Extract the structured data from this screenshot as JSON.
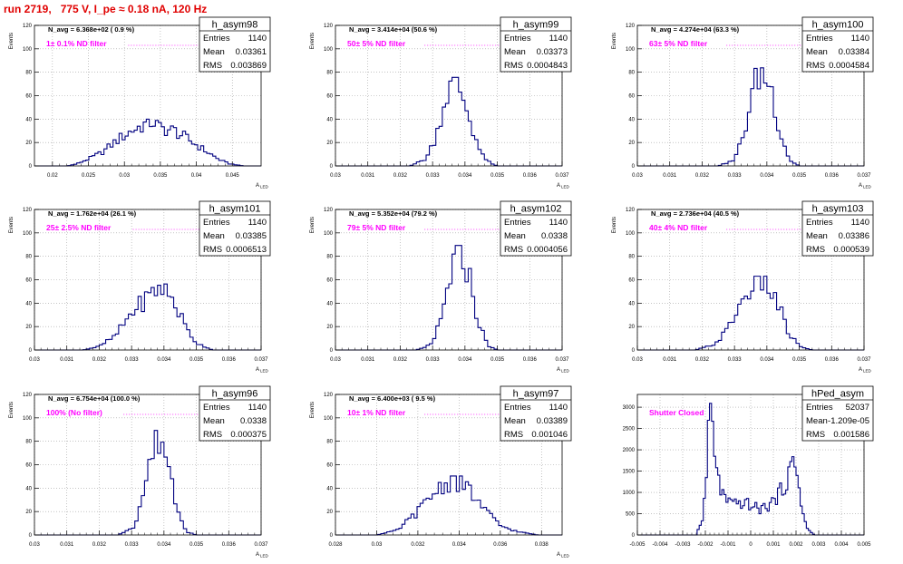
{
  "title": "run 2719,   775 V, I_pe ≈ 0.18 nA, 120 Hz",
  "colors": {
    "title": "#e00000",
    "histogram": "#000080",
    "annotation": "#ff00ff",
    "grid": "#a0a0a0",
    "frame": "#000000"
  },
  "stat_labels": {
    "entries": "Entries",
    "mean": "Mean",
    "rms": "RMS"
  },
  "chart_data": [
    {
      "type": "histogram",
      "name": "h_asym98",
      "xlabel": "A_LED",
      "ylabel": "Events",
      "xlim": [
        0.0175,
        0.049
      ],
      "ylim": [
        0,
        120
      ],
      "xticks": [
        0.02,
        0.025,
        0.03,
        0.035,
        0.04,
        0.045
      ],
      "xtick_labels": [
        "0.02",
        "0.025",
        "0.03",
        "0.035",
        "0.04",
        "0.045"
      ],
      "yticks": [
        0,
        20,
        40,
        60,
        80,
        100,
        120
      ],
      "grid": true,
      "navg": "N_avg = 6.368e+02 ( 0.9 %)",
      "filter": "1± 0.1% ND filter",
      "stats": {
        "entries": "1140",
        "mean": "0.03361",
        "rms": "0.003869"
      },
      "profile": [
        [
          0.0222,
          0
        ],
        [
          0.0235,
          2
        ],
        [
          0.025,
          6
        ],
        [
          0.027,
          12
        ],
        [
          0.029,
          22
        ],
        [
          0.031,
          30
        ],
        [
          0.033,
          36
        ],
        [
          0.034,
          38
        ],
        [
          0.035,
          32
        ],
        [
          0.037,
          30
        ],
        [
          0.039,
          22
        ],
        [
          0.041,
          14
        ],
        [
          0.043,
          6
        ],
        [
          0.0445,
          2
        ],
        [
          0.0465,
          0
        ]
      ],
      "bins": 75
    },
    {
      "type": "histogram",
      "name": "h_asym99",
      "xlabel": "A_LED",
      "ylabel": "Events",
      "xlim": [
        0.03,
        0.037
      ],
      "ylim": [
        0,
        120
      ],
      "xticks": [
        0.03,
        0.031,
        0.032,
        0.033,
        0.034,
        0.035,
        0.036,
        0.037
      ],
      "xtick_labels": [
        "0.03",
        "0.031",
        "0.032",
        "0.033",
        "0.034",
        "0.035",
        "0.036",
        "0.037"
      ],
      "yticks": [
        0,
        20,
        40,
        60,
        80,
        100,
        120
      ],
      "grid": true,
      "navg": "N_avg = 3.414e+04 (50.6 %)",
      "filter": "50± 5% ND filter",
      "stats": {
        "entries": "1140",
        "mean": "0.03373",
        "rms": "0.0004843"
      },
      "profile": [
        [
          0.0323,
          0
        ],
        [
          0.0328,
          6
        ],
        [
          0.0331,
          25
        ],
        [
          0.0334,
          58
        ],
        [
          0.03365,
          72
        ],
        [
          0.0339,
          62
        ],
        [
          0.0342,
          35
        ],
        [
          0.0345,
          10
        ],
        [
          0.0348,
          2
        ],
        [
          0.035,
          0
        ]
      ],
      "bins": 70
    },
    {
      "type": "histogram",
      "name": "h_asym100",
      "xlabel": "A_LED",
      "ylabel": "Events",
      "xlim": [
        0.03,
        0.037
      ],
      "ylim": [
        0,
        120
      ],
      "xticks": [
        0.03,
        0.031,
        0.032,
        0.033,
        0.034,
        0.035,
        0.036,
        0.037
      ],
      "xtick_labels": [
        "0.03",
        "0.031",
        "0.032",
        "0.033",
        "0.034",
        "0.035",
        "0.036",
        "0.037"
      ],
      "yticks": [
        0,
        20,
        40,
        60,
        80,
        100,
        120
      ],
      "grid": true,
      "navg": "N_avg = 4.274e+04 (63.3 %)",
      "filter": "63± 5% ND filter",
      "stats": {
        "entries": "1140",
        "mean": "0.03384",
        "rms": "0.0004584"
      },
      "profile": [
        [
          0.0325,
          0
        ],
        [
          0.033,
          5
        ],
        [
          0.0333,
          28
        ],
        [
          0.0336,
          68
        ],
        [
          0.0338,
          80
        ],
        [
          0.0341,
          70
        ],
        [
          0.0344,
          30
        ],
        [
          0.0347,
          5
        ],
        [
          0.035,
          0
        ]
      ],
      "bins": 70
    },
    {
      "type": "histogram",
      "name": "h_asym101",
      "xlabel": "A_LED",
      "ylabel": "Events",
      "xlim": [
        0.03,
        0.037
      ],
      "ylim": [
        0,
        120
      ],
      "xticks": [
        0.03,
        0.031,
        0.032,
        0.033,
        0.034,
        0.035,
        0.036,
        0.037
      ],
      "xtick_labels": [
        "0.03",
        "0.031",
        "0.032",
        "0.033",
        "0.034",
        "0.035",
        "0.036",
        "0.037"
      ],
      "yticks": [
        0,
        20,
        40,
        60,
        80,
        100,
        120
      ],
      "grid": true,
      "navg": "N_avg = 1.762e+04 (26.1 %)",
      "filter": "25± 2.5% ND filter",
      "stats": {
        "entries": "1140",
        "mean": "0.03385",
        "rms": "0.0006513"
      },
      "profile": [
        [
          0.0315,
          0
        ],
        [
          0.032,
          3
        ],
        [
          0.0325,
          12
        ],
        [
          0.033,
          32
        ],
        [
          0.0335,
          45
        ],
        [
          0.0339,
          55
        ],
        [
          0.0343,
          42
        ],
        [
          0.0347,
          18
        ],
        [
          0.035,
          6
        ],
        [
          0.0355,
          0
        ]
      ],
      "bins": 70
    },
    {
      "type": "histogram",
      "name": "h_asym102",
      "xlabel": "A_LED",
      "ylabel": "Events",
      "xlim": [
        0.03,
        0.037
      ],
      "ylim": [
        0,
        120
      ],
      "xticks": [
        0.03,
        0.031,
        0.032,
        0.033,
        0.034,
        0.035,
        0.036,
        0.037
      ],
      "xtick_labels": [
        "0.03",
        "0.031",
        "0.032",
        "0.033",
        "0.034",
        "0.035",
        "0.036",
        "0.037"
      ],
      "yticks": [
        0,
        20,
        40,
        60,
        80,
        100,
        120
      ],
      "grid": true,
      "navg": "N_avg = 5.352e+04 (79.2 %)",
      "filter": "79± 5% ND filter",
      "stats": {
        "entries": "1140",
        "mean": "0.0338",
        "rms": "0.0004056"
      },
      "profile": [
        [
          0.0325,
          0
        ],
        [
          0.033,
          5
        ],
        [
          0.0333,
          30
        ],
        [
          0.0336,
          70
        ],
        [
          0.0338,
          85
        ],
        [
          0.0341,
          68
        ],
        [
          0.0344,
          25
        ],
        [
          0.0347,
          4
        ],
        [
          0.035,
          0
        ]
      ],
      "bins": 70
    },
    {
      "type": "histogram",
      "name": "h_asym103",
      "xlabel": "A_LED",
      "ylabel": "Events",
      "xlim": [
        0.03,
        0.037
      ],
      "ylim": [
        0,
        120
      ],
      "xticks": [
        0.03,
        0.031,
        0.032,
        0.033,
        0.034,
        0.035,
        0.036,
        0.037
      ],
      "xtick_labels": [
        "0.03",
        "0.031",
        "0.032",
        "0.033",
        "0.034",
        "0.035",
        "0.036",
        "0.037"
      ],
      "yticks": [
        0,
        20,
        40,
        60,
        80,
        100,
        120
      ],
      "grid": true,
      "navg": "N_avg = 2.736e+04 (40.5 %)",
      "filter": "40± 4% ND filter",
      "stats": {
        "entries": "1140",
        "mean": "0.03386",
        "rms": "0.000539"
      },
      "profile": [
        [
          0.0318,
          0
        ],
        [
          0.0324,
          5
        ],
        [
          0.0328,
          18
        ],
        [
          0.0332,
          40
        ],
        [
          0.0336,
          58
        ],
        [
          0.0339,
          60
        ],
        [
          0.0343,
          42
        ],
        [
          0.0347,
          12
        ],
        [
          0.0351,
          2
        ],
        [
          0.0354,
          0
        ]
      ],
      "bins": 70
    },
    {
      "type": "histogram",
      "name": "h_asym96",
      "xlabel": "A_LED",
      "ylabel": "Events",
      "xlim": [
        0.03,
        0.037
      ],
      "ylim": [
        0,
        120
      ],
      "xticks": [
        0.03,
        0.031,
        0.032,
        0.033,
        0.034,
        0.035,
        0.036,
        0.037
      ],
      "xtick_labels": [
        "0.03",
        "0.031",
        "0.032",
        "0.033",
        "0.034",
        "0.035",
        "0.036",
        "0.037"
      ],
      "yticks": [
        0,
        20,
        40,
        60,
        80,
        100,
        120
      ],
      "grid": true,
      "navg": "N_avg = 6.754e+04 (100.0 %)",
      "filter": "100% (No filter)",
      "stats": {
        "entries": "1140",
        "mean": "0.0338",
        "rms": "0.000375"
      },
      "profile": [
        [
          0.0326,
          0
        ],
        [
          0.0331,
          8
        ],
        [
          0.0334,
          40
        ],
        [
          0.0337,
          78
        ],
        [
          0.0339,
          85
        ],
        [
          0.0341,
          65
        ],
        [
          0.0344,
          25
        ],
        [
          0.0347,
          3
        ],
        [
          0.035,
          0
        ]
      ],
      "bins": 70
    },
    {
      "type": "histogram",
      "name": "h_asym97",
      "xlabel": "A_LED",
      "ylabel": "Events",
      "xlim": [
        0.028,
        0.039
      ],
      "ylim": [
        0,
        120
      ],
      "xticks": [
        0.028,
        0.03,
        0.032,
        0.034,
        0.036,
        0.038
      ],
      "xtick_labels": [
        "0.028",
        "0.03",
        "0.032",
        "0.034",
        "0.036",
        "0.038"
      ],
      "yticks": [
        0,
        20,
        40,
        60,
        80,
        100,
        120
      ],
      "grid": true,
      "navg": "N_avg = 6.400e+03 ( 9.5 %)",
      "filter": "10± 1% ND filter",
      "stats": {
        "entries": "1140",
        "mean": "0.03389",
        "rms": "0.001046"
      },
      "profile": [
        [
          0.03,
          0
        ],
        [
          0.031,
          4
        ],
        [
          0.032,
          20
        ],
        [
          0.033,
          40
        ],
        [
          0.0338,
          48
        ],
        [
          0.0345,
          38
        ],
        [
          0.0352,
          22
        ],
        [
          0.036,
          8
        ],
        [
          0.0368,
          3
        ],
        [
          0.0378,
          0
        ]
      ],
      "bins": 75
    },
    {
      "type": "histogram",
      "name": "hPed_asym",
      "xlabel": "",
      "ylabel": "",
      "xlim": [
        -0.005,
        0.005
      ],
      "ylim": [
        0,
        3300
      ],
      "xticks": [
        -0.005,
        -0.004,
        -0.003,
        -0.002,
        -0.001,
        0,
        0.001,
        0.002,
        0.003,
        0.004,
        0.005
      ],
      "xtick_labels": [
        "-0.005",
        "-0.004",
        "-0.003",
        "-0.002",
        "-0.001",
        "0",
        "0.001",
        "0.002",
        "0.003",
        "0.004",
        "0.005"
      ],
      "yticks": [
        0,
        500,
        1000,
        1500,
        2000,
        2500,
        3000
      ],
      "grid": true,
      "navg": "",
      "filter": "Shutter Closed",
      "stats": {
        "entries": "52037",
        "mean": "-1.209e-05",
        "rms": "0.001586"
      },
      "profile": [
        [
          -0.0024,
          0
        ],
        [
          -0.0021,
          400
        ],
        [
          -0.0019,
          1800
        ],
        [
          -0.0018,
          3100
        ],
        [
          -0.0016,
          2000
        ],
        [
          -0.0014,
          1200
        ],
        [
          -0.0011,
          800
        ],
        [
          -0.0008,
          700
        ],
        [
          -0.0004,
          760
        ],
        [
          0.0,
          700
        ],
        [
          0.0004,
          600
        ],
        [
          0.0008,
          700
        ],
        [
          0.0012,
          900
        ],
        [
          0.0016,
          1300
        ],
        [
          0.0019,
          1700
        ],
        [
          0.0021,
          1350
        ],
        [
          0.0023,
          500
        ],
        [
          0.0025,
          150
        ],
        [
          0.0028,
          0
        ]
      ],
      "bins": 110
    }
  ]
}
